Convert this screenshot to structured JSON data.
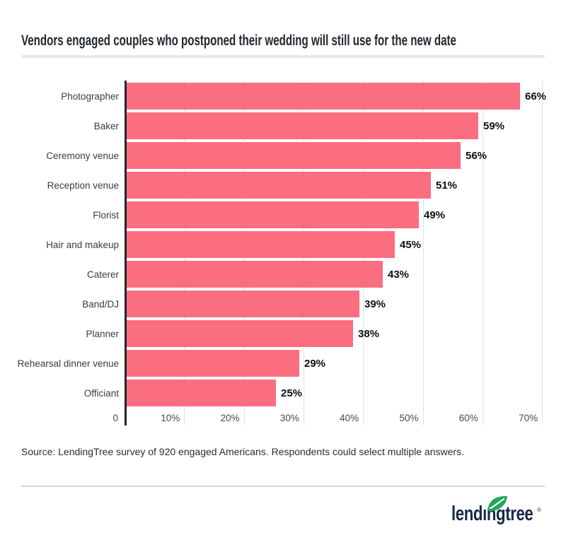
{
  "page": {
    "title": "Vendors engaged couples who postponed their wedding will still use for the new date",
    "source_note": "Source: LendingTree survey of 920 engaged Americans. Respondents could select multiple answers.",
    "logo": {
      "wordmark": "lendingtree",
      "registered_mark": "®",
      "navy": "#182a47",
      "green": "#22a65c"
    }
  },
  "chart_data": {
    "type": "bar",
    "orientation": "horizontal",
    "title": "Vendors engaged couples who postponed their wedding will still use for the new date",
    "categories": [
      "Photographer",
      "Baker",
      "Ceremony venue",
      "Reception venue",
      "Florist",
      "Hair and makeup",
      "Caterer",
      "Band/DJ",
      "Planner",
      "Rehearsal dinner venue",
      "Officiant"
    ],
    "values": [
      66,
      59,
      56,
      51,
      49,
      45,
      43,
      39,
      38,
      29,
      25
    ],
    "labels": [
      "66%",
      "59%",
      "56%",
      "51%",
      "49%",
      "45%",
      "43%",
      "39%",
      "38%",
      "29%",
      "25%"
    ],
    "x_ticks": [
      {
        "label": "0",
        "value": 0
      },
      {
        "label": "10%",
        "value": 10
      },
      {
        "label": "20%",
        "value": 20
      },
      {
        "label": "30%",
        "value": 30
      },
      {
        "label": "40%",
        "value": 40
      },
      {
        "label": "50%",
        "value": 50
      },
      {
        "label": "60%",
        "value": 60
      },
      {
        "label": "70%",
        "value": 70
      }
    ],
    "xlim": [
      0,
      70
    ],
    "xlabel": "",
    "ylabel": "",
    "grid": true,
    "legend": false,
    "bar_color": "#fa6e80",
    "axis_color": "#26262b",
    "grid_color": "#e2e2e2"
  }
}
